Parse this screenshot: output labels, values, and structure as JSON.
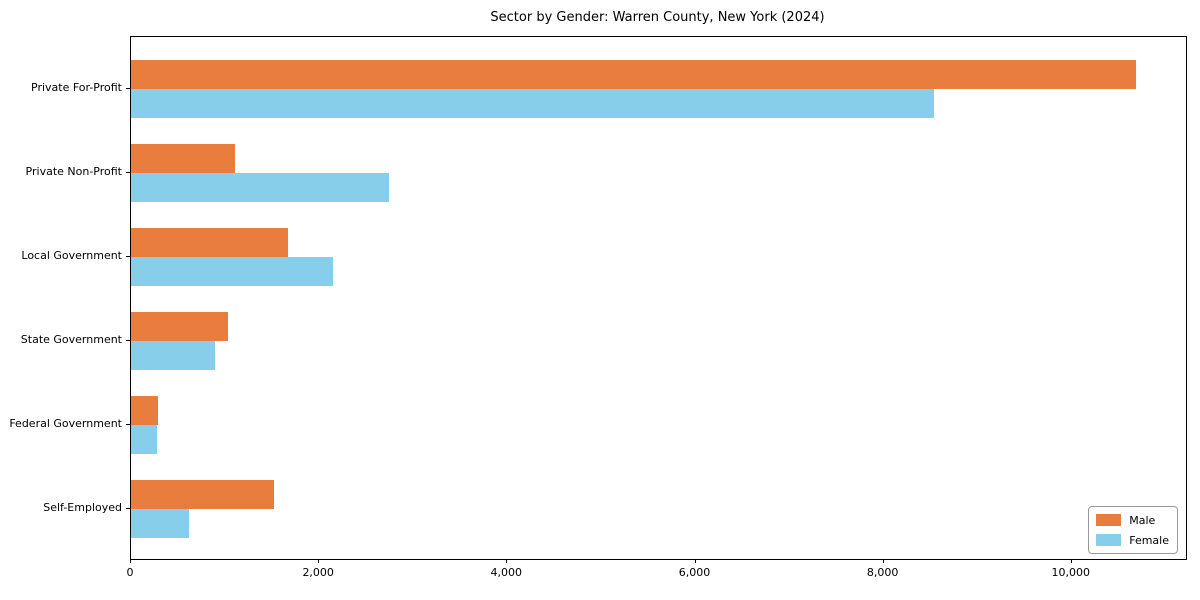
{
  "chart_data": {
    "type": "bar",
    "orientation": "horizontal",
    "title": "Sector by Gender: Warren County, New York (2024)",
    "categories": [
      "Private For-Profit",
      "Private Non-Profit",
      "Local Government",
      "State Government",
      "Federal Government",
      "Self-Employed"
    ],
    "series": [
      {
        "name": "Male",
        "color": "#e87d3e",
        "values": [
          10680,
          1110,
          1665,
          1030,
          290,
          1515
        ]
      },
      {
        "name": "Female",
        "color": "#87ceeb",
        "values": [
          8540,
          2745,
          2150,
          895,
          280,
          620
        ]
      }
    ],
    "xlabel": "",
    "ylabel": "",
    "xlim": [
      0,
      11214
    ],
    "xticks": [
      0,
      2000,
      4000,
      6000,
      8000,
      10000
    ],
    "xtick_labels": [
      "0",
      "2,000",
      "4,000",
      "6,000",
      "8,000",
      "10,000"
    ],
    "grid": false,
    "legend": {
      "position": "lower right"
    }
  }
}
